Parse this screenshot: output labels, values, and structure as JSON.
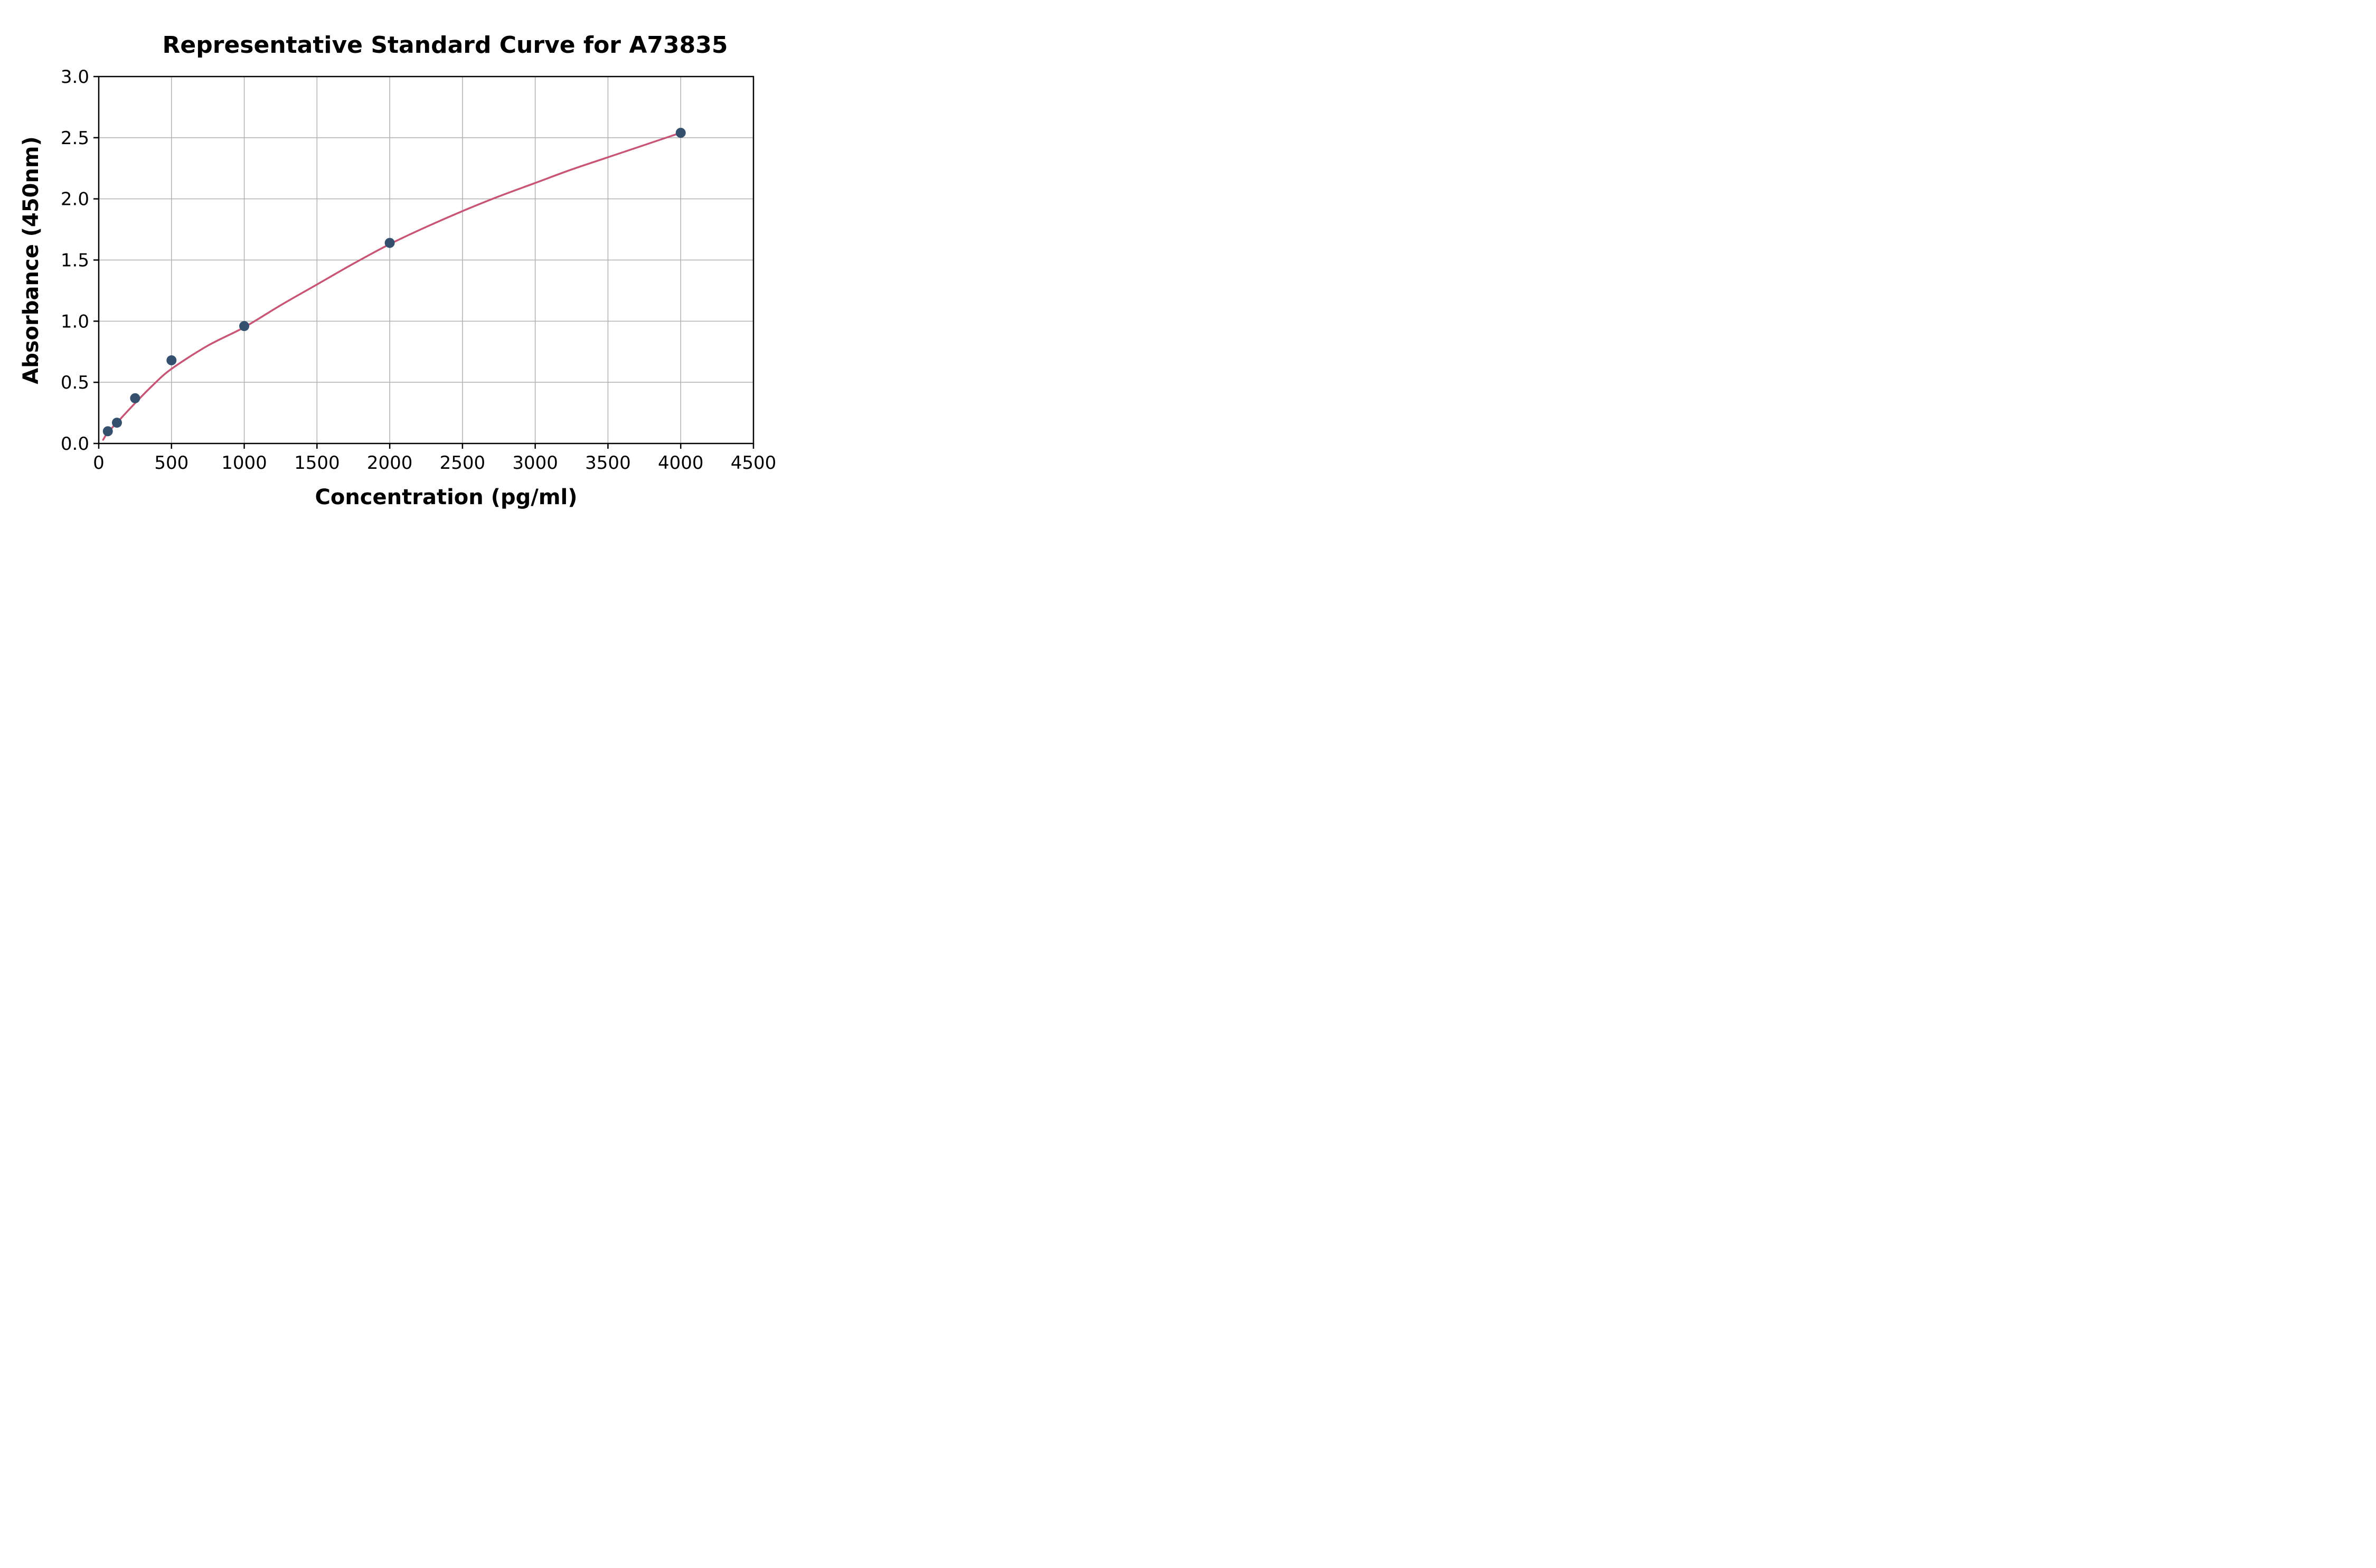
{
  "title": "Representative Standard Curve for A73835",
  "chart_data": {
    "type": "scatter",
    "title": "Representative Standard Curve for A73835",
    "xlabel": "Concentration (pg/ml)",
    "ylabel": "Absorbance (450nm)",
    "xlim": [
      0,
      4500
    ],
    "ylim": [
      0,
      3
    ],
    "grid": true,
    "legend": "none",
    "xticks": [
      0,
      500,
      1000,
      1500,
      2000,
      2500,
      3000,
      3500,
      4000,
      4500
    ],
    "xticklabels": [
      "0",
      "500",
      "1000",
      "1500",
      "2000",
      "2500",
      "3000",
      "3500",
      "4000",
      "4500"
    ],
    "yticks": [
      0.0,
      0.5,
      1.0,
      1.5,
      2.0,
      2.5,
      3.0
    ],
    "yticklabels": [
      "0.0",
      "0.5",
      "1.0",
      "1.5",
      "2.0",
      "2.5",
      "3.0"
    ],
    "series": [
      {
        "name": "standard-points",
        "type": "scatter",
        "x": [
          62.5,
          125,
          250,
          500,
          1000,
          2000,
          4000
        ],
        "y": [
          0.1,
          0.17,
          0.37,
          0.68,
          0.96,
          1.64,
          2.54
        ]
      },
      {
        "name": "fitted-curve",
        "type": "line",
        "x": [
          30,
          62.5,
          125,
          250,
          375,
          500,
          750,
          1000,
          1250,
          1500,
          1750,
          2000,
          2250,
          2500,
          2750,
          3000,
          3250,
          3500,
          3750,
          4000
        ],
        "y": [
          0.03,
          0.09,
          0.17,
          0.33,
          0.48,
          0.61,
          0.8,
          0.95,
          1.13,
          1.3,
          1.47,
          1.63,
          1.77,
          1.9,
          2.02,
          2.13,
          2.24,
          2.34,
          2.44,
          2.54
        ]
      }
    ],
    "colors": {
      "point": "#34506e",
      "curve": "#c85575",
      "grid": "#b0b0b0",
      "axis": "#000000",
      "background": "#ffffff"
    }
  }
}
